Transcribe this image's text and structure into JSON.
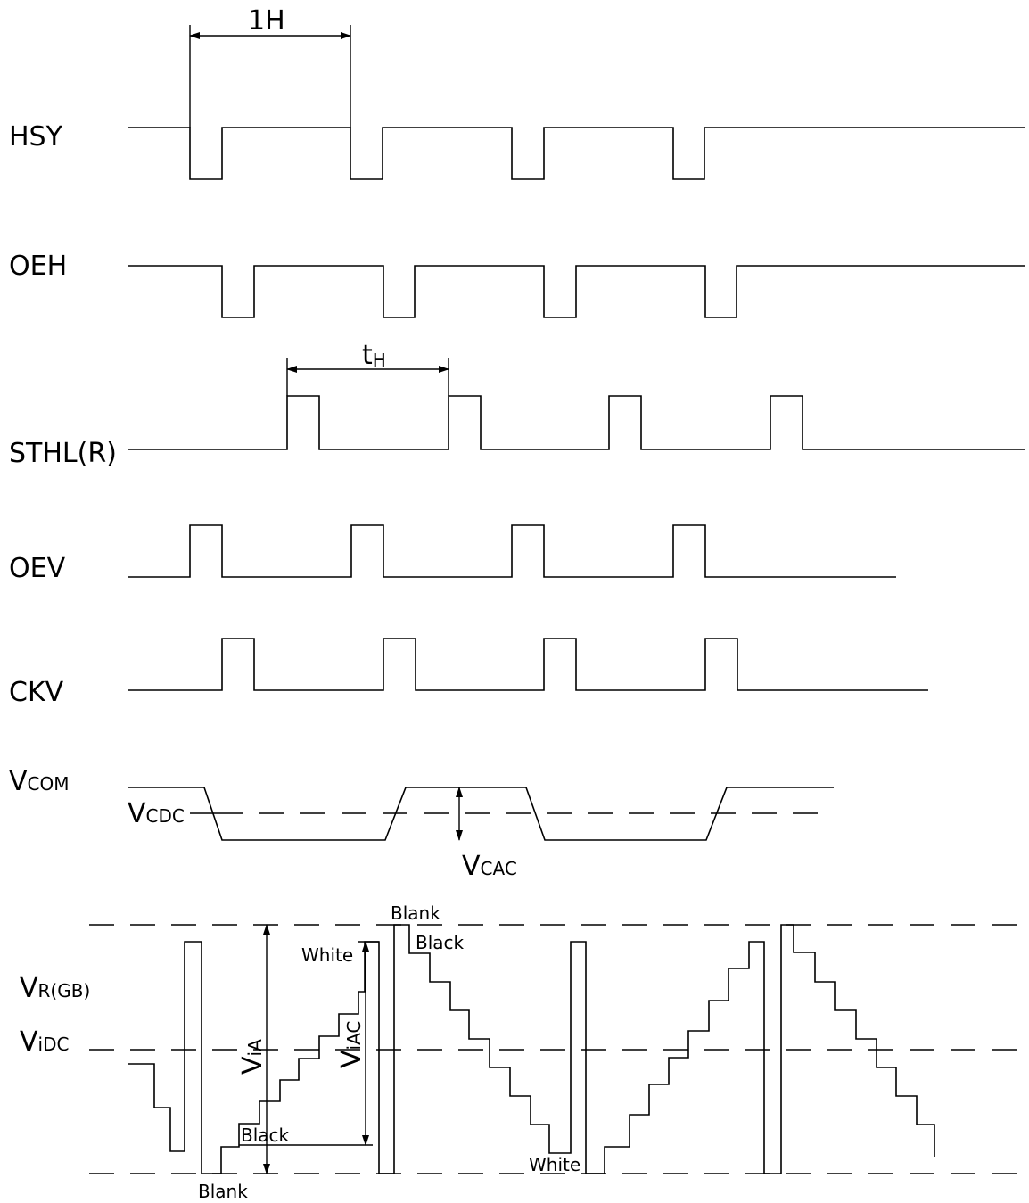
{
  "signals": {
    "hsy": "HSY",
    "oeh": "OEH",
    "sthl": "STHL(R)",
    "oev": "OEV",
    "ckv": "CKV",
    "vcom": {
      "main": "V",
      "sub": "COM"
    },
    "vrgb": {
      "main": "V",
      "sub": "R(GB)"
    },
    "vidc": {
      "main": "V",
      "sub": "iDC"
    }
  },
  "measurements": {
    "one_h": "1H",
    "t_h": {
      "main": "t",
      "sub": "H"
    },
    "vcdc": {
      "main": "V",
      "sub": "CDC"
    },
    "vcac": {
      "main": "V",
      "sub": "CAC"
    },
    "via": {
      "main": "V",
      "sub": "iA"
    },
    "viac": {
      "main": "V",
      "sub": "iAC"
    }
  },
  "annotations": {
    "blank": "Blank",
    "black": "Black",
    "white": "White"
  }
}
